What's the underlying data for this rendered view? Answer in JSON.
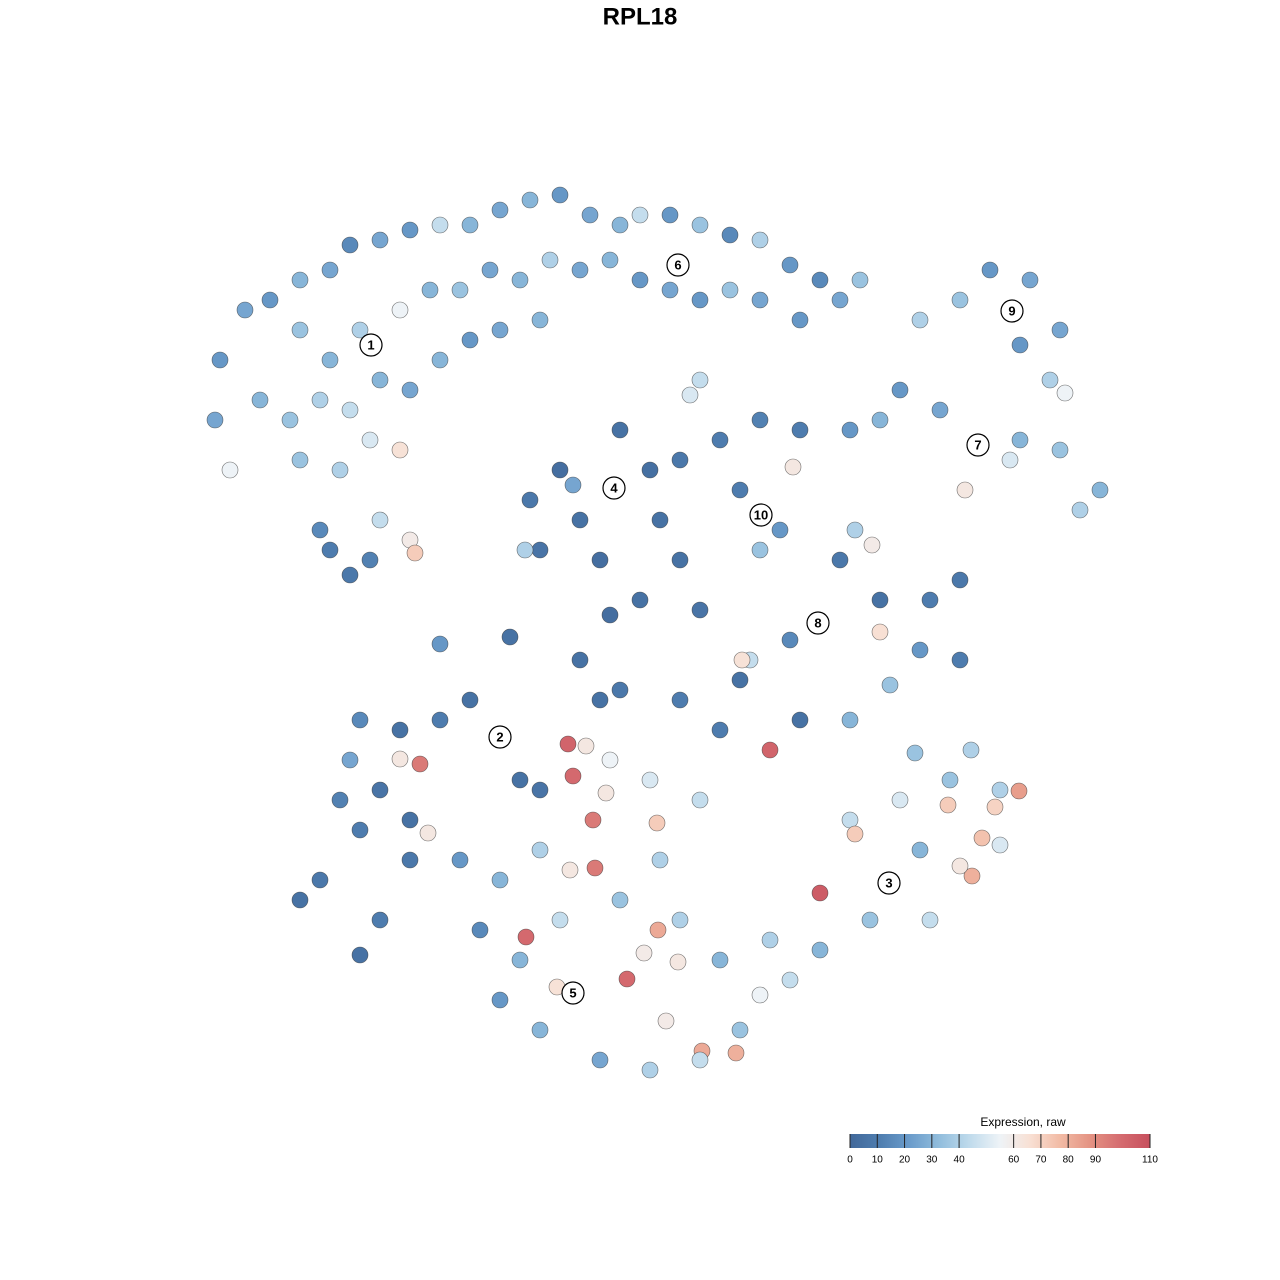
{
  "chart_data": {
    "type": "scatter",
    "title": "RPL18",
    "legend_title": "Expression, raw",
    "xlim": [
      190,
      1140
    ],
    "ylim": [
      1100,
      180
    ],
    "clim": [
      0,
      110
    ],
    "cticks": [
      0,
      10,
      20,
      30,
      40,
      60,
      70,
      80,
      90,
      110
    ],
    "colormap": [
      "#41689a",
      "#4f7eb0",
      "#6b9ccb",
      "#92bedd",
      "#c0dbec",
      "#eef3f7",
      "#f8e0d4",
      "#f2bba5",
      "#e49383",
      "#d56c70",
      "#c74f5d"
    ],
    "x": [
      230,
      215,
      220,
      245,
      270,
      300,
      330,
      350,
      380,
      410,
      440,
      470,
      500,
      530,
      560,
      590,
      620,
      640,
      670,
      700,
      730,
      760,
      790,
      820,
      840,
      300,
      330,
      360,
      400,
      430,
      460,
      490,
      520,
      550,
      580,
      610,
      640,
      670,
      700,
      730,
      760,
      800,
      260,
      290,
      320,
      350,
      380,
      410,
      440,
      470,
      500,
      540,
      300,
      340,
      370,
      400,
      380,
      410,
      415,
      330,
      350,
      370,
      320,
      700,
      690,
      614,
      560,
      580,
      530,
      620,
      650,
      600,
      540,
      660,
      573,
      525,
      680,
      720,
      760,
      800,
      761,
      740,
      780,
      760,
      793,
      1012,
      990,
      1030,
      960,
      920,
      1060,
      1050,
      1065,
      1020,
      860,
      978,
      940,
      900,
      880,
      1020,
      1060,
      1100,
      1080,
      1010,
      965,
      850,
      818,
      840,
      880,
      930,
      960,
      920,
      960,
      890,
      790,
      750,
      742,
      880,
      872,
      855,
      640,
      610,
      580,
      510,
      440,
      680,
      700,
      500,
      470,
      440,
      400,
      360,
      350,
      400,
      420,
      340,
      380,
      410,
      360,
      428,
      300,
      320,
      360,
      380,
      410,
      460,
      520,
      540,
      889,
      820,
      850,
      900,
      950,
      1000,
      1019,
      995,
      982,
      972,
      960,
      948,
      855,
      920,
      870,
      820,
      790,
      770,
      930,
      1000,
      971,
      915,
      770,
      720,
      800,
      850,
      573,
      568,
      573,
      586,
      593,
      595,
      570,
      606,
      657,
      658,
      526,
      627,
      557,
      644,
      678,
      702,
      736,
      666,
      610,
      650,
      700,
      660,
      620,
      540,
      500,
      520,
      500,
      540,
      600,
      650,
      700,
      740,
      760,
      720,
      680,
      560,
      480,
      600,
      620,
      680,
      740
    ],
    "y": [
      470,
      420,
      360,
      310,
      300,
      280,
      270,
      245,
      240,
      230,
      225,
      225,
      210,
      200,
      195,
      215,
      225,
      215,
      215,
      225,
      235,
      240,
      265,
      280,
      300,
      330,
      360,
      330,
      310,
      290,
      290,
      270,
      280,
      260,
      270,
      260,
      280,
      290,
      300,
      290,
      300,
      320,
      400,
      420,
      400,
      410,
      380,
      390,
      360,
      340,
      330,
      320,
      460,
      470,
      440,
      450,
      520,
      540,
      553,
      550,
      575,
      560,
      530,
      380,
      395,
      488,
      470,
      520,
      500,
      430,
      470,
      560,
      550,
      520,
      485,
      550,
      460,
      440,
      420,
      430,
      515,
      490,
      530,
      550,
      467,
      311,
      270,
      280,
      300,
      320,
      330,
      380,
      393,
      345,
      280,
      445,
      410,
      390,
      420,
      440,
      450,
      490,
      510,
      460,
      490,
      430,
      623,
      560,
      600,
      600,
      580,
      650,
      660,
      685,
      640,
      660,
      660,
      632,
      545,
      530,
      600,
      615,
      660,
      637,
      644,
      560,
      610,
      737,
      700,
      720,
      730,
      720,
      760,
      759,
      764,
      800,
      790,
      820,
      830,
      833,
      900,
      880,
      955,
      920,
      860,
      860,
      780,
      790,
      883,
      893,
      820,
      800,
      780,
      790,
      791,
      807,
      838,
      876,
      866,
      805,
      834,
      850,
      920,
      950,
      980,
      940,
      920,
      845,
      750,
      753,
      750,
      730,
      720,
      720,
      993,
      744,
      776,
      746,
      820,
      868,
      870,
      793,
      823,
      930,
      937,
      979,
      987,
      953,
      962,
      1051,
      1053,
      1021,
      760,
      780,
      800,
      860,
      900,
      850,
      880,
      960,
      1000,
      1030,
      1060,
      1070,
      1060,
      1030,
      995,
      960,
      920,
      920,
      930,
      700,
      690,
      700,
      680
    ],
    "values": [
      55,
      25,
      20,
      25,
      20,
      30,
      25,
      15,
      25,
      20,
      45,
      30,
      25,
      30,
      20,
      25,
      30,
      45,
      20,
      35,
      15,
      40,
      20,
      15,
      25,
      35,
      30,
      40,
      55,
      30,
      35,
      25,
      30,
      40,
      25,
      30,
      20,
      25,
      20,
      35,
      25,
      20,
      30,
      35,
      40,
      45,
      30,
      25,
      30,
      20,
      25,
      30,
      35,
      40,
      50,
      65,
      45,
      60,
      72,
      10,
      8,
      12,
      15,
      45,
      50,
      5,
      3,
      5,
      8,
      5,
      4,
      3,
      6,
      5,
      25,
      40,
      8,
      10,
      12,
      10,
      15,
      10,
      20,
      35,
      62,
      30,
      20,
      25,
      35,
      40,
      25,
      40,
      55,
      20,
      35,
      30,
      25,
      20,
      30,
      30,
      35,
      30,
      40,
      50,
      62,
      20,
      12,
      8,
      5,
      10,
      8,
      20,
      10,
      35,
      15,
      45,
      65,
      66,
      60,
      40,
      5,
      3,
      5,
      5,
      20,
      5,
      6,
      8,
      5,
      10,
      5,
      15,
      25,
      62,
      95,
      12,
      6,
      5,
      10,
      62,
      5,
      8,
      5,
      10,
      8,
      20,
      5,
      6,
      40,
      105,
      45,
      50,
      35,
      40,
      85,
      70,
      75,
      80,
      62,
      72,
      72,
      30,
      35,
      30,
      45,
      40,
      45,
      50,
      40,
      35,
      102,
      10,
      5,
      30,
      45,
      102,
      100,
      62,
      95,
      95,
      62,
      62,
      72,
      82,
      100,
      100,
      65,
      60,
      62,
      82,
      80,
      60,
      55,
      50,
      45,
      40,
      35,
      40,
      30,
      30,
      20,
      30,
      25,
      40,
      45,
      35,
      55,
      30,
      40,
      45,
      15,
      5,
      8,
      10,
      5
    ],
    "clusters": [
      {
        "label": "1",
        "x": 371,
        "y": 345
      },
      {
        "label": "2",
        "x": 500,
        "y": 737
      },
      {
        "label": "3",
        "x": 889,
        "y": 883
      },
      {
        "label": "4",
        "x": 614,
        "y": 488
      },
      {
        "label": "5",
        "x": 573,
        "y": 993
      },
      {
        "label": "6",
        "x": 678,
        "y": 265
      },
      {
        "label": "7",
        "x": 978,
        "y": 445
      },
      {
        "label": "8",
        "x": 818,
        "y": 623
      },
      {
        "label": "9",
        "x": 1012,
        "y": 311
      },
      {
        "label": "10",
        "x": 761,
        "y": 515
      }
    ]
  }
}
